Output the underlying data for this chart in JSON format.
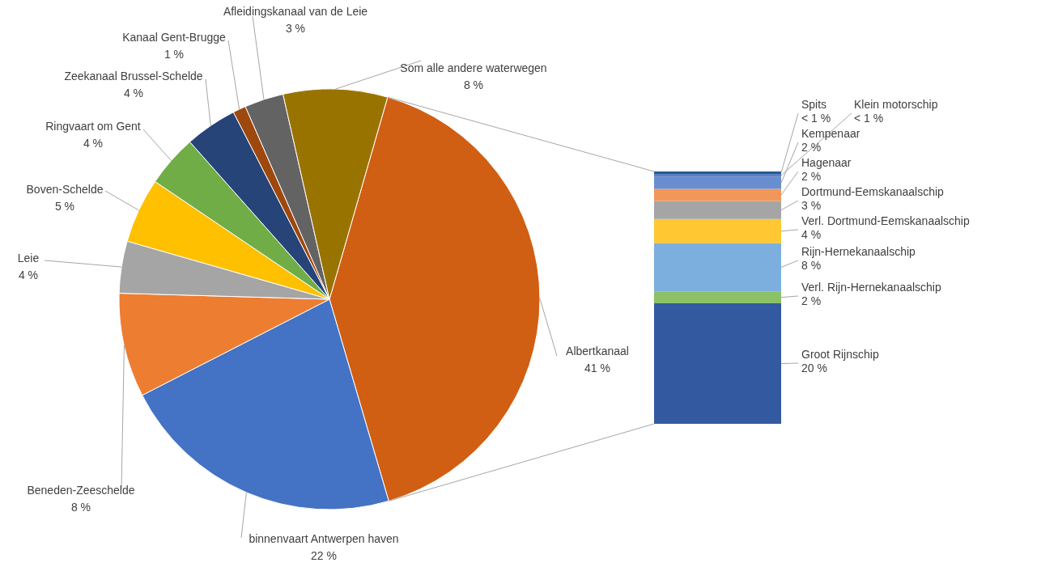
{
  "chart_data": [
    {
      "type": "pie",
      "categories": [
        "Albertkanaal",
        "binnenvaart Antwerpen haven",
        "Beneden-Zeeschelde",
        "Leie",
        "Boven-Schelde",
        "Ringvaart om Gent",
        "Zeekanaal Brussel-Schelde",
        "Kanaal Gent-Brugge",
        "Afleidingskanaal van de Leie",
        "Som alle andere waterwegen"
      ],
      "values": [
        41,
        22,
        8,
        4,
        5,
        4,
        4,
        1,
        3,
        8
      ],
      "colors": [
        "#d05f13",
        "#4472c4",
        "#ed7d31",
        "#a5a5a5",
        "#ffc000",
        "#70ad47",
        "#264478",
        "#9e480e",
        "#636363",
        "#997300"
      ],
      "value_labels": [
        "41 %",
        "22 %",
        "8 %",
        "4 %",
        "5 %",
        "4 %",
        "4 %",
        "1 %",
        "3 %",
        "8 %"
      ]
    },
    {
      "type": "bar",
      "stacked": true,
      "categories": [
        null
      ],
      "series": [
        {
          "name": "Groot Rijnschip",
          "color": "#335aa1",
          "values": [
            20
          ],
          "value_labels": [
            "20 %"
          ]
        },
        {
          "name": "Verl. Rijn-Hernekanaalschip",
          "color": "#8cc168",
          "values": [
            2
          ],
          "value_labels": [
            "2 %"
          ]
        },
        {
          "name": "Rijn-Hernekanaalschip",
          "color": "#7cafdd",
          "values": [
            8
          ],
          "value_labels": [
            "8 %"
          ]
        },
        {
          "name": "Verl. Dortmund-Eemskanaalschip",
          "color": "#ffc732",
          "values": [
            4
          ],
          "value_labels": [
            "4 %"
          ]
        },
        {
          "name": "Dortmund-Eemskanaalschip",
          "color": "#a5a5a5",
          "values": [
            3
          ],
          "value_labels": [
            "3 %"
          ]
        },
        {
          "name": "Hagenaar",
          "color": "#f1975a",
          "values": [
            2
          ],
          "value_labels": [
            "2 %"
          ]
        },
        {
          "name": "Kempenaar",
          "color": "#698ed0",
          "values": [
            2
          ],
          "value_labels": [
            "2 %"
          ]
        },
        {
          "name": "Klein motorschip",
          "color": "#5b7fc4",
          "values": [
            0.5
          ],
          "value_labels": [
            "< 1 %"
          ]
        },
        {
          "name": "Spits",
          "color": "#255e91",
          "values": [
            0.4
          ],
          "value_labels": [
            "< 1 %"
          ]
        }
      ]
    }
  ]
}
